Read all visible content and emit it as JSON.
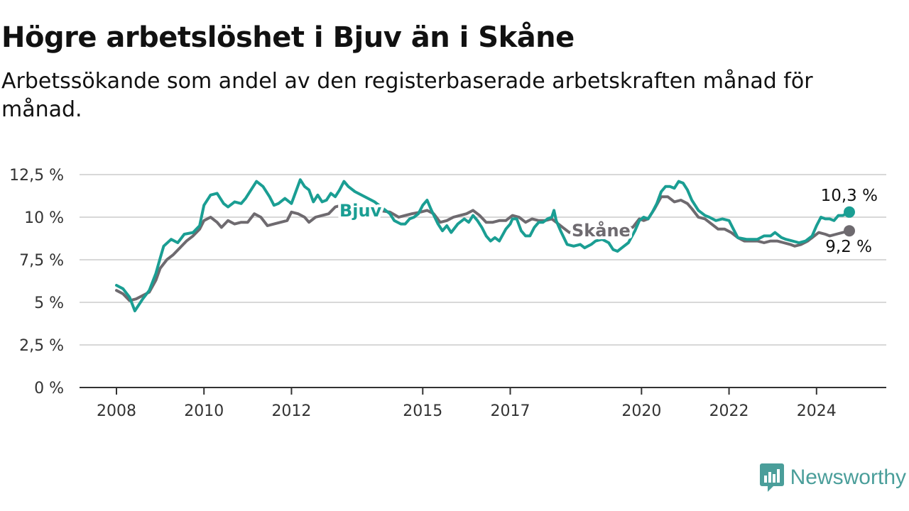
{
  "title": "Högre arbetslöshet i Bjuv än i Skåne",
  "subtitle": "Arbetssökande som andel av den registerbaserade arbetskraften månad för månad.",
  "brand": "Newsworthy",
  "colors": {
    "bjuv": "#1a9e93",
    "skane": "#6e6a6f",
    "grid": "#d8d8d8",
    "axis": "#333333",
    "brand": "#4a9e9a"
  },
  "chart_data": {
    "type": "line",
    "title": "Högre arbetslöshet i Bjuv än i Skåne",
    "subtitle": "Arbetssökande som andel av den registerbaserade arbetskraften månad för månad.",
    "xlabel": "",
    "ylabel": "",
    "ylim": [
      0,
      12.5
    ],
    "y_ticks": [
      0,
      2.5,
      5,
      7.5,
      10,
      12.5
    ],
    "y_tick_labels": [
      "0 %",
      "2,5 %",
      "5 %",
      "7,5 %",
      "10 %",
      "12,5 %"
    ],
    "x_ticks": [
      2008,
      2010,
      2012,
      2015,
      2017,
      2020,
      2022,
      2024
    ],
    "x_tick_labels": [
      "2008",
      "2010",
      "2012",
      "2015",
      "2017",
      "2020",
      "2022",
      "2024"
    ],
    "grid": true,
    "series": [
      {
        "name": "Bjuv",
        "end_label": "10,3 %",
        "points": [
          [
            2008.0,
            6.0
          ],
          [
            2008.15,
            5.8
          ],
          [
            2008.3,
            5.3
          ],
          [
            2008.42,
            4.5
          ],
          [
            2008.6,
            5.2
          ],
          [
            2008.75,
            5.7
          ],
          [
            2008.9,
            6.7
          ],
          [
            2009.0,
            7.6
          ],
          [
            2009.08,
            8.3
          ],
          [
            2009.25,
            8.7
          ],
          [
            2009.4,
            8.5
          ],
          [
            2009.55,
            9.0
          ],
          [
            2009.75,
            9.1
          ],
          [
            2009.9,
            9.5
          ],
          [
            2010.0,
            10.7
          ],
          [
            2010.15,
            11.3
          ],
          [
            2010.3,
            11.4
          ],
          [
            2010.45,
            10.8
          ],
          [
            2010.55,
            10.6
          ],
          [
            2010.7,
            10.9
          ],
          [
            2010.85,
            10.8
          ],
          [
            2010.95,
            11.1
          ],
          [
            2011.1,
            11.7
          ],
          [
            2011.2,
            12.1
          ],
          [
            2011.35,
            11.8
          ],
          [
            2011.5,
            11.2
          ],
          [
            2011.6,
            10.7
          ],
          [
            2011.7,
            10.8
          ],
          [
            2011.85,
            11.1
          ],
          [
            2012.0,
            10.8
          ],
          [
            2012.1,
            11.5
          ],
          [
            2012.2,
            12.2
          ],
          [
            2012.3,
            11.8
          ],
          [
            2012.4,
            11.6
          ],
          [
            2012.5,
            10.9
          ],
          [
            2012.6,
            11.3
          ],
          [
            2012.7,
            10.9
          ],
          [
            2012.8,
            11.0
          ],
          [
            2012.9,
            11.4
          ],
          [
            2013.0,
            11.2
          ],
          [
            2013.1,
            11.6
          ],
          [
            2013.2,
            12.1
          ],
          [
            2013.3,
            11.8
          ],
          [
            2013.45,
            11.5
          ],
          [
            2013.9,
            10.9
          ],
          [
            2014.1,
            10.5
          ],
          [
            2014.25,
            10.2
          ],
          [
            2014.35,
            9.8
          ],
          [
            2014.5,
            9.6
          ],
          [
            2014.6,
            9.6
          ],
          [
            2014.7,
            9.9
          ],
          [
            2014.8,
            10.0
          ],
          [
            2014.9,
            10.2
          ],
          [
            2015.0,
            10.7
          ],
          [
            2015.1,
            11.0
          ],
          [
            2015.2,
            10.4
          ],
          [
            2015.35,
            9.6
          ],
          [
            2015.45,
            9.2
          ],
          [
            2015.55,
            9.5
          ],
          [
            2015.65,
            9.1
          ],
          [
            2015.8,
            9.6
          ],
          [
            2015.95,
            9.9
          ],
          [
            2016.05,
            9.7
          ],
          [
            2016.15,
            10.1
          ],
          [
            2016.25,
            9.8
          ],
          [
            2016.35,
            9.4
          ],
          [
            2016.45,
            8.9
          ],
          [
            2016.55,
            8.6
          ],
          [
            2016.65,
            8.8
          ],
          [
            2016.75,
            8.6
          ],
          [
            2016.9,
            9.3
          ],
          [
            2017.0,
            9.6
          ],
          [
            2017.05,
            9.9
          ],
          [
            2017.15,
            9.9
          ],
          [
            2017.25,
            9.2
          ],
          [
            2017.35,
            8.9
          ],
          [
            2017.45,
            8.9
          ],
          [
            2017.55,
            9.4
          ],
          [
            2017.65,
            9.7
          ],
          [
            2017.75,
            9.7
          ],
          [
            2017.85,
            9.9
          ],
          [
            2017.95,
            10.0
          ],
          [
            2018.0,
            10.4
          ],
          [
            2018.05,
            9.8
          ],
          [
            2018.15,
            9.2
          ],
          [
            2018.3,
            8.4
          ],
          [
            2018.45,
            8.3
          ],
          [
            2018.6,
            8.4
          ],
          [
            2018.7,
            8.2
          ],
          [
            2018.85,
            8.4
          ],
          [
            2018.95,
            8.6
          ],
          [
            2019.1,
            8.7
          ],
          [
            2019.25,
            8.5
          ],
          [
            2019.35,
            8.1
          ],
          [
            2019.45,
            8.0
          ],
          [
            2019.55,
            8.2
          ],
          [
            2019.7,
            8.5
          ],
          [
            2019.85,
            9.2
          ],
          [
            2019.95,
            9.8
          ],
          [
            2020.05,
            10.0
          ],
          [
            2020.15,
            9.9
          ],
          [
            2020.25,
            10.3
          ],
          [
            2020.35,
            10.8
          ],
          [
            2020.45,
            11.5
          ],
          [
            2020.55,
            11.8
          ],
          [
            2020.65,
            11.8
          ],
          [
            2020.75,
            11.7
          ],
          [
            2020.85,
            12.1
          ],
          [
            2020.95,
            12.0
          ],
          [
            2021.05,
            11.6
          ],
          [
            2021.15,
            11.0
          ],
          [
            2021.3,
            10.4
          ],
          [
            2021.45,
            10.1
          ],
          [
            2021.55,
            10.0
          ],
          [
            2021.7,
            9.8
          ],
          [
            2021.85,
            9.9
          ],
          [
            2022.0,
            9.8
          ],
          [
            2022.1,
            9.3
          ],
          [
            2022.2,
            8.8
          ],
          [
            2022.4,
            8.7
          ],
          [
            2022.55,
            8.7
          ],
          [
            2022.65,
            8.7
          ],
          [
            2022.8,
            8.9
          ],
          [
            2022.95,
            8.9
          ],
          [
            2023.05,
            9.1
          ],
          [
            2023.2,
            8.8
          ],
          [
            2023.3,
            8.7
          ],
          [
            2023.45,
            8.6
          ],
          [
            2023.6,
            8.5
          ],
          [
            2023.75,
            8.6
          ],
          [
            2023.9,
            8.9
          ],
          [
            2024.0,
            9.5
          ],
          [
            2024.1,
            10.0
          ],
          [
            2024.2,
            9.9
          ],
          [
            2024.3,
            9.9
          ],
          [
            2024.4,
            9.8
          ],
          [
            2024.5,
            10.1
          ],
          [
            2024.6,
            10.1
          ],
          [
            2024.75,
            10.3
          ]
        ]
      },
      {
        "name": "Skåne",
        "end_label": "9,2 %",
        "points": [
          [
            2008.0,
            5.7
          ],
          [
            2008.15,
            5.5
          ],
          [
            2008.3,
            5.1
          ],
          [
            2008.45,
            5.2
          ],
          [
            2008.6,
            5.4
          ],
          [
            2008.75,
            5.6
          ],
          [
            2008.9,
            6.3
          ],
          [
            2009.0,
            7.0
          ],
          [
            2009.15,
            7.5
          ],
          [
            2009.3,
            7.8
          ],
          [
            2009.45,
            8.2
          ],
          [
            2009.6,
            8.6
          ],
          [
            2009.75,
            8.9
          ],
          [
            2009.9,
            9.3
          ],
          [
            2010.0,
            9.8
          ],
          [
            2010.15,
            10.0
          ],
          [
            2010.3,
            9.7
          ],
          [
            2010.4,
            9.4
          ],
          [
            2010.55,
            9.8
          ],
          [
            2010.7,
            9.6
          ],
          [
            2010.85,
            9.7
          ],
          [
            2011.0,
            9.7
          ],
          [
            2011.15,
            10.2
          ],
          [
            2011.3,
            10.0
          ],
          [
            2011.45,
            9.5
          ],
          [
            2011.6,
            9.6
          ],
          [
            2011.75,
            9.7
          ],
          [
            2011.9,
            9.8
          ],
          [
            2012.0,
            10.3
          ],
          [
            2012.15,
            10.2
          ],
          [
            2012.3,
            10.0
          ],
          [
            2012.4,
            9.7
          ],
          [
            2012.55,
            10.0
          ],
          [
            2012.7,
            10.1
          ],
          [
            2012.85,
            10.2
          ],
          [
            2013.0,
            10.6
          ],
          [
            2013.15,
            10.7
          ],
          [
            2014.25,
            10.3
          ],
          [
            2014.45,
            10.0
          ],
          [
            2014.6,
            10.1
          ],
          [
            2014.75,
            10.2
          ],
          [
            2014.95,
            10.3
          ],
          [
            2015.1,
            10.4
          ],
          [
            2015.25,
            10.2
          ],
          [
            2015.4,
            9.7
          ],
          [
            2015.55,
            9.8
          ],
          [
            2015.7,
            10.0
          ],
          [
            2015.85,
            10.1
          ],
          [
            2016.0,
            10.2
          ],
          [
            2016.15,
            10.4
          ],
          [
            2016.3,
            10.1
          ],
          [
            2016.45,
            9.7
          ],
          [
            2016.6,
            9.7
          ],
          [
            2016.75,
            9.8
          ],
          [
            2016.9,
            9.8
          ],
          [
            2017.05,
            10.1
          ],
          [
            2017.2,
            10.0
          ],
          [
            2017.35,
            9.7
          ],
          [
            2017.5,
            9.9
          ],
          [
            2017.65,
            9.8
          ],
          [
            2017.8,
            9.8
          ],
          [
            2017.95,
            9.9
          ],
          [
            2018.05,
            9.7
          ],
          [
            2018.2,
            9.4
          ],
          [
            2018.35,
            9.1
          ],
          [
            2019.8,
            9.4
          ],
          [
            2019.95,
            9.9
          ],
          [
            2020.05,
            9.8
          ],
          [
            2020.15,
            9.9
          ],
          [
            2020.3,
            10.5
          ],
          [
            2020.45,
            11.2
          ],
          [
            2020.6,
            11.2
          ],
          [
            2020.75,
            10.9
          ],
          [
            2020.9,
            11.0
          ],
          [
            2021.05,
            10.8
          ],
          [
            2021.15,
            10.5
          ],
          [
            2021.3,
            10.0
          ],
          [
            2021.45,
            9.9
          ],
          [
            2021.6,
            9.6
          ],
          [
            2021.75,
            9.3
          ],
          [
            2021.9,
            9.3
          ],
          [
            2022.05,
            9.1
          ],
          [
            2022.2,
            8.8
          ],
          [
            2022.35,
            8.6
          ],
          [
            2022.5,
            8.6
          ],
          [
            2022.65,
            8.6
          ],
          [
            2022.8,
            8.5
          ],
          [
            2022.95,
            8.6
          ],
          [
            2023.1,
            8.6
          ],
          [
            2023.25,
            8.5
          ],
          [
            2023.4,
            8.4
          ],
          [
            2023.5,
            8.3
          ],
          [
            2023.65,
            8.4
          ],
          [
            2023.8,
            8.6
          ],
          [
            2023.95,
            8.9
          ],
          [
            2024.05,
            9.1
          ],
          [
            2024.2,
            9.0
          ],
          [
            2024.3,
            8.9
          ],
          [
            2024.45,
            9.0
          ],
          [
            2024.6,
            9.1
          ],
          [
            2024.75,
            9.2
          ]
        ]
      }
    ]
  }
}
